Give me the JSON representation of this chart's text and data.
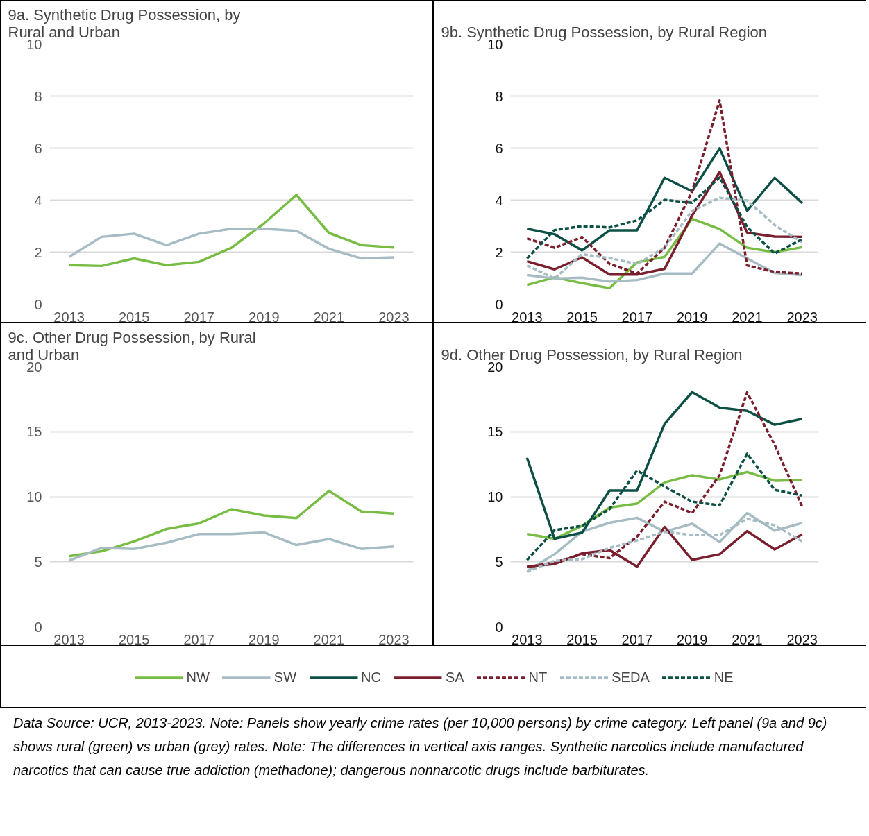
{
  "chart_data": [
    {
      "type": "line",
      "title": "9a. Synthetic Drug Possession, by Rural and Urban",
      "x": [
        2013,
        2014,
        2015,
        2016,
        2017,
        2018,
        2019,
        2020,
        2021,
        2022,
        2023
      ],
      "xlim": [
        2012.4,
        2023.6
      ],
      "xticks": [
        2013,
        2015,
        2017,
        2019,
        2021,
        2023
      ],
      "ylim": [
        0,
        10
      ],
      "yticks": [
        0,
        2,
        4,
        6,
        8,
        10
      ],
      "grid": "y",
      "line_style": "solid",
      "series": [
        {
          "color": "#77bc43",
          "values": [
            1.5,
            1.47,
            1.76,
            1.5,
            1.63,
            2.17,
            3.1,
            4.2,
            2.74,
            2.27,
            2.18
          ]
        },
        {
          "color": "#a6bcc4",
          "values": [
            1.82,
            2.59,
            2.71,
            2.27,
            2.71,
            2.9,
            2.9,
            2.82,
            2.13,
            1.76,
            1.8
          ]
        }
      ]
    },
    {
      "type": "line",
      "title": "9b. Synthetic Drug Possession, by Rural Region",
      "x": [
        2013,
        2014,
        2015,
        2016,
        2017,
        2018,
        2019,
        2020,
        2021,
        2022,
        2023
      ],
      "xlim": [
        2012.4,
        2023.6
      ],
      "xticks": [
        2013,
        2015,
        2017,
        2019,
        2021,
        2023
      ],
      "ylim": [
        0,
        10
      ],
      "yticks": [
        0,
        2,
        4,
        6,
        8,
        10
      ],
      "grid": "y",
      "legend": "bottom",
      "series": [
        {
          "name": "NW",
          "color": "#77bc43",
          "line_style": "solid",
          "values": [
            0.74,
            1.03,
            0.81,
            0.62,
            1.61,
            1.82,
            3.28,
            2.89,
            2.17,
            2.0,
            2.19
          ]
        },
        {
          "name": "SW",
          "color": "#a6bcc4",
          "line_style": "solid",
          "values": [
            1.12,
            0.99,
            1.02,
            0.87,
            0.93,
            1.18,
            1.18,
            2.33,
            1.76,
            1.2,
            1.12
          ]
        },
        {
          "name": "NC",
          "color": "#0b4f45",
          "line_style": "solid",
          "values": [
            2.9,
            2.69,
            2.07,
            2.84,
            2.84,
            4.86,
            4.34,
            5.99,
            3.59,
            4.86,
            3.89
          ]
        },
        {
          "name": "SA",
          "color": "#7b1e2d",
          "line_style": "solid",
          "values": [
            1.65,
            1.34,
            1.8,
            1.14,
            1.14,
            1.36,
            3.41,
            5.08,
            2.75,
            2.6,
            2.59
          ]
        },
        {
          "name": "NT",
          "color": "#7b1e2d",
          "line_style": "dashed",
          "values": [
            2.53,
            2.17,
            2.58,
            1.55,
            1.18,
            2.17,
            4.34,
            7.83,
            1.49,
            1.24,
            1.18
          ]
        },
        {
          "name": "SEDA",
          "color": "#a6bcc4",
          "line_style": "dashed",
          "values": [
            1.49,
            0.99,
            1.92,
            1.77,
            1.55,
            2.17,
            3.59,
            4.09,
            3.99,
            3.04,
            2.38
          ]
        },
        {
          "name": "NE",
          "color": "#0b4f45",
          "line_style": "dashed",
          "values": [
            1.76,
            2.85,
            3.0,
            2.95,
            3.22,
            4.01,
            3.9,
            4.87,
            2.97,
            1.95,
            2.5
          ]
        }
      ]
    },
    {
      "type": "line",
      "title": "9c. Other Drug Possession, by Rural and Urban",
      "x": [
        2013,
        2014,
        2015,
        2016,
        2017,
        2018,
        2019,
        2020,
        2021,
        2022,
        2023
      ],
      "xlim": [
        2012.4,
        2023.6
      ],
      "xticks": [
        2013,
        2015,
        2017,
        2019,
        2021,
        2023
      ],
      "ylim": [
        0,
        20
      ],
      "yticks": [
        0,
        5,
        10,
        15,
        20
      ],
      "grid": "y",
      "line_style": "solid",
      "series": [
        {
          "color": "#77bc43",
          "values": [
            5.43,
            5.81,
            6.57,
            7.52,
            7.95,
            9.04,
            8.56,
            8.36,
            10.45,
            8.87,
            8.71
          ]
        },
        {
          "color": "#a6bcc4",
          "values": [
            5.1,
            6.06,
            5.99,
            6.47,
            7.13,
            7.13,
            7.26,
            6.29,
            6.75,
            5.99,
            6.17
          ]
        }
      ]
    },
    {
      "type": "line",
      "title": "9d. Other Drug Possession, by Rural Region",
      "x": [
        2013,
        2014,
        2015,
        2016,
        2017,
        2018,
        2019,
        2020,
        2021,
        2022,
        2023
      ],
      "xlim": [
        2012.4,
        2023.6
      ],
      "xticks": [
        2013,
        2015,
        2017,
        2019,
        2021,
        2023
      ],
      "ylim": [
        0,
        20
      ],
      "yticks": [
        0,
        5,
        10,
        15,
        20
      ],
      "grid": "y",
      "series": [
        {
          "color": "#77bc43",
          "line_style": "solid",
          "values": [
            7.14,
            6.77,
            7.76,
            9.17,
            9.47,
            11.1,
            11.65,
            11.33,
            11.9,
            11.23,
            11.28
          ]
        },
        {
          "color": "#a6bcc4",
          "line_style": "solid",
          "values": [
            4.29,
            5.58,
            7.31,
            8.0,
            8.38,
            7.31,
            7.93,
            6.52,
            8.75,
            7.39,
            7.98
          ]
        },
        {
          "color": "#0b4f45",
          "line_style": "solid",
          "values": [
            13.0,
            6.77,
            7.24,
            10.48,
            10.48,
            15.61,
            18.04,
            16.85,
            16.6,
            15.54,
            15.99
          ]
        },
        {
          "color": "#7b1e2d",
          "line_style": "solid",
          "values": [
            4.63,
            4.83,
            5.65,
            5.9,
            4.63,
            7.68,
            5.15,
            5.58,
            7.36,
            5.95,
            7.11
          ]
        },
        {
          "color": "#7b1e2d",
          "line_style": "dashed",
          "values": [
            4.58,
            4.96,
            5.58,
            5.28,
            6.94,
            9.62,
            8.75,
            11.65,
            18.02,
            14.0,
            9.24
          ]
        },
        {
          "color": "#a6bcc4",
          "line_style": "dashed",
          "values": [
            4.21,
            5.08,
            5.2,
            6.07,
            6.64,
            7.31,
            7.06,
            7.06,
            8.3,
            7.81,
            6.57
          ]
        },
        {
          "color": "#0b4f45",
          "line_style": "dashed",
          "values": [
            5.13,
            7.43,
            7.76,
            9.05,
            12.02,
            10.78,
            9.62,
            9.34,
            13.31,
            10.53,
            10.09
          ]
        }
      ],
      "annotations": [
        "Data Source: UCR, 2013-2023. Note: Panels show yearly crime rates (per 10,000 persons) by crime category. Left panel (9a and 9c) shows rural (green) vs urban (grey) rates. Note: The differences in vertical axis ranges. Synthetic narcotics include manufactured narcotics that can cause true addiction (methadone); dangerous nonnarcotic drugs include barbiturates."
      ]
    }
  ]
}
